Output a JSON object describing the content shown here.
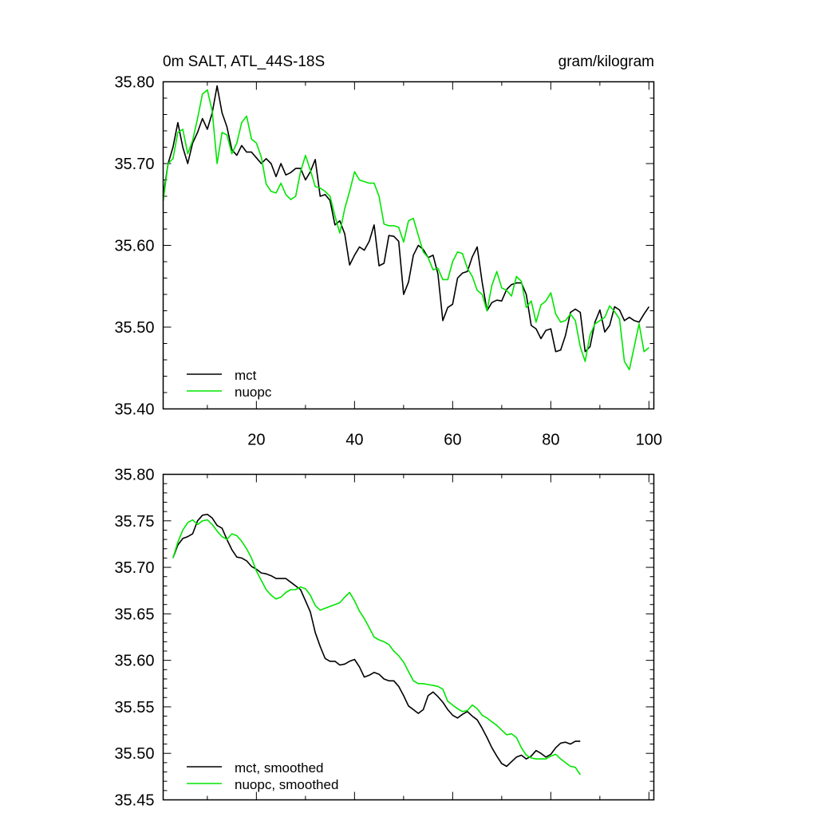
{
  "chart_data": [
    {
      "type": "line",
      "title": "0m SALT, ATL_44S-18S",
      "units": "gram/kilogram",
      "xlabel": "",
      "ylabel": "",
      "xlim": [
        1,
        101
      ],
      "ylim": [
        35.4,
        35.8
      ],
      "x_ticks": [
        20,
        40,
        60,
        80,
        100
      ],
      "y_ticks": [
        35.4,
        35.5,
        35.6,
        35.7,
        35.8
      ],
      "legend_position": "bottom-left",
      "series": [
        {
          "name": "mct",
          "color": "#000000",
          "x_start": 1,
          "values": [
            35.66,
            35.7,
            35.72,
            35.75,
            35.72,
            35.7,
            35.725,
            35.738,
            35.755,
            35.742,
            35.762,
            35.795,
            35.762,
            35.745,
            35.717,
            35.71,
            35.722,
            35.714,
            35.714,
            35.707,
            35.7,
            35.706,
            35.7,
            35.684,
            35.7,
            35.686,
            35.689,
            35.694,
            35.694,
            35.68,
            35.69,
            35.705,
            35.66,
            35.662,
            35.655,
            35.625,
            35.63,
            35.614,
            35.576,
            35.588,
            35.598,
            35.594,
            35.605,
            35.625,
            35.575,
            35.578,
            35.612,
            35.611,
            35.605,
            35.54,
            35.555,
            35.588,
            35.6,
            35.595,
            35.585,
            35.588,
            35.565,
            35.508,
            35.524,
            35.528,
            35.56,
            35.566,
            35.568,
            35.586,
            35.598,
            35.555,
            35.52,
            35.53,
            35.533,
            35.532,
            35.546,
            35.552,
            35.554,
            35.554,
            35.54,
            35.502,
            35.498,
            35.486,
            35.496,
            35.498,
            35.47,
            35.472,
            35.49,
            35.518,
            35.522,
            35.518,
            35.47,
            35.476,
            35.506,
            35.521,
            35.494,
            35.502,
            35.525,
            35.521,
            35.508,
            35.512,
            35.508,
            35.506,
            35.516,
            35.525
          ]
        },
        {
          "name": "nuopc",
          "color": "#00e600",
          "x_start": 1,
          "values": [
            35.654,
            35.7,
            35.706,
            35.738,
            35.742,
            35.712,
            35.728,
            35.755,
            35.785,
            35.79,
            35.764,
            35.7,
            35.738,
            35.735,
            35.712,
            35.725,
            35.75,
            35.758,
            35.73,
            35.725,
            35.708,
            35.675,
            35.666,
            35.664,
            35.676,
            35.662,
            35.656,
            35.66,
            35.69,
            35.71,
            35.692,
            35.672,
            35.67,
            35.666,
            35.66,
            35.636,
            35.615,
            35.645,
            35.666,
            35.69,
            35.68,
            35.678,
            35.676,
            35.676,
            35.66,
            35.626,
            35.624,
            35.624,
            35.622,
            35.604,
            35.63,
            35.633,
            35.612,
            35.592,
            35.585,
            35.57,
            35.572,
            35.558,
            35.558,
            35.58,
            35.592,
            35.59,
            35.572,
            35.562,
            35.545,
            35.54,
            35.52,
            35.551,
            35.568,
            35.548,
            35.545,
            35.538,
            35.562,
            35.556,
            35.524,
            35.532,
            35.506,
            35.527,
            35.532,
            35.542,
            35.516,
            35.506,
            35.508,
            35.516,
            35.508,
            35.476,
            35.458,
            35.49,
            35.504,
            35.508,
            35.512,
            35.526,
            35.519,
            35.51,
            35.458,
            35.448,
            35.476,
            35.504,
            35.47,
            35.475
          ]
        }
      ]
    },
    {
      "type": "line",
      "title": "",
      "xlabel": "",
      "ylabel": "",
      "xlim": [
        1,
        101
      ],
      "ylim": [
        35.45,
        35.8
      ],
      "y_ticks": [
        35.45,
        35.5,
        35.55,
        35.6,
        35.65,
        35.7,
        35.75,
        35.8
      ],
      "legend_position": "bottom-left",
      "series": [
        {
          "name": "mct, smoothed",
          "color": "#000000",
          "x_start": 3,
          "values": [
            35.71,
            35.724,
            35.731,
            35.733,
            35.736,
            35.75,
            35.756,
            35.757,
            35.753,
            35.745,
            35.742,
            35.73,
            35.719,
            35.711,
            35.71,
            35.707,
            35.701,
            35.698,
            35.694,
            35.693,
            35.691,
            35.688,
            35.688,
            35.688,
            35.684,
            35.68,
            35.676,
            35.664,
            35.652,
            35.63,
            35.615,
            35.602,
            35.599,
            35.599,
            35.595,
            35.596,
            35.599,
            35.601,
            35.593,
            35.582,
            35.584,
            35.587,
            35.585,
            35.58,
            35.578,
            35.578,
            35.572,
            35.562,
            35.551,
            35.547,
            35.543,
            35.547,
            35.562,
            35.566,
            35.561,
            35.555,
            35.547,
            35.541,
            35.538,
            35.542,
            35.545,
            35.54,
            35.536,
            35.527,
            35.517,
            35.506,
            35.497,
            35.489,
            35.486,
            35.491,
            35.496,
            35.498,
            35.494,
            35.497,
            35.503,
            35.5,
            35.496,
            35.499,
            35.506,
            35.511,
            35.512,
            35.51,
            35.513,
            35.513
          ]
        },
        {
          "name": "nuopc, smoothed",
          "color": "#00e600",
          "x_start": 3,
          "values": [
            35.71,
            35.727,
            35.74,
            35.748,
            35.751,
            35.746,
            35.75,
            35.751,
            35.746,
            35.739,
            35.733,
            35.73,
            35.736,
            35.734,
            35.728,
            35.72,
            35.71,
            35.696,
            35.686,
            35.676,
            35.67,
            35.666,
            35.668,
            35.673,
            35.676,
            35.676,
            35.679,
            35.677,
            35.67,
            35.659,
            35.654,
            35.656,
            35.658,
            35.66,
            35.662,
            35.668,
            35.673,
            35.664,
            35.653,
            35.645,
            35.635,
            35.625,
            35.622,
            35.62,
            35.617,
            35.61,
            35.605,
            35.598,
            35.588,
            35.578,
            35.575,
            35.575,
            35.574,
            35.573,
            35.572,
            35.569,
            35.556,
            35.552,
            35.548,
            35.545,
            35.546,
            35.552,
            35.548,
            35.541,
            35.538,
            35.534,
            35.53,
            35.525,
            35.52,
            35.521,
            35.517,
            35.506,
            35.498,
            35.495,
            35.494,
            35.494,
            35.494,
            35.497,
            35.499,
            35.494,
            35.49,
            35.486,
            35.485,
            35.477
          ]
        }
      ]
    }
  ]
}
